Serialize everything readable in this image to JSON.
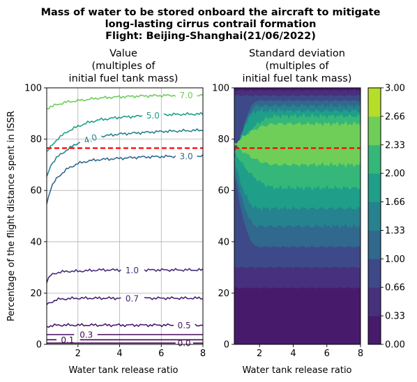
{
  "figure": {
    "title_lines": [
      "Mass of water to be stored onboard the aircraft to mitigate",
      "long-lasting cirrus contrail formation",
      "Flight: Beijing-Shanghai(21/06/2022)"
    ]
  },
  "left_panel": {
    "title_lines": [
      "Value",
      "(multiples of",
      "initial fuel tank mass)"
    ],
    "xlabel": "Water tank release ratio",
    "ylabel": "Percentage of the flight distance spent in ISSR",
    "x_ticks": [
      "2",
      "4",
      "6",
      "8"
    ],
    "y_ticks": [
      "0",
      "20",
      "40",
      "60",
      "80",
      "100"
    ]
  },
  "right_panel": {
    "title_lines": [
      "Standard deviation",
      "(multiples of",
      "initial fuel tank mass)"
    ],
    "xlabel": "Water tank release ratio",
    "x_ticks": [
      "2",
      "4",
      "6",
      "8"
    ],
    "y_ticks": [
      "0",
      "20",
      "40",
      "60",
      "80",
      "100"
    ]
  },
  "colorbar": {
    "tick_labels": [
      "0.00",
      "0.33",
      "0.66",
      "1.00",
      "1.33",
      "1.66",
      "2.00",
      "2.33",
      "2.66",
      "3.00"
    ],
    "colors": [
      "#481a6c",
      "#47307e",
      "#3e4989",
      "#31688e",
      "#26828e",
      "#1f9e89",
      "#35b779",
      "#6ece58",
      "#b5de2b",
      "#dae319"
    ]
  },
  "chart_data": [
    {
      "type": "line",
      "subtype": "contour",
      "title": "Value (multiples of initial fuel tank mass)",
      "xlabel": "Water tank release ratio",
      "ylabel": "Percentage of the flight distance spent in ISSR",
      "xlim": [
        0.5,
        8
      ],
      "ylim": [
        0,
        100
      ],
      "grid": true,
      "threshold_line": {
        "y": 76.5,
        "color": "#ff0000",
        "style": "dashed"
      },
      "series": [
        {
          "name": "0.0",
          "color": "#440154",
          "x": [
            0.5,
            2,
            4,
            6,
            8
          ],
          "y": [
            0.5,
            0.5,
            0.5,
            0.5,
            0.5
          ]
        },
        {
          "name": "0.1",
          "color": "#440154",
          "x": [
            0.5,
            2,
            4,
            6,
            8
          ],
          "y": [
            1.8,
            1.8,
            1.8,
            1.8,
            1.8
          ]
        },
        {
          "name": "0.3",
          "color": "#46085c",
          "x": [
            0.5,
            2,
            4,
            6,
            8
          ],
          "y": [
            3.8,
            3.8,
            3.8,
            3.8,
            3.8
          ]
        },
        {
          "name": "0.5",
          "color": "#481a6c",
          "x": [
            0.5,
            1,
            2,
            3,
            4,
            5,
            6,
            7,
            8
          ],
          "y": [
            7,
            7.5,
            7.5,
            7.5,
            7.5,
            7.5,
            7.5,
            7.5,
            7.5
          ]
        },
        {
          "name": "0.7",
          "color": "#482475",
          "x": [
            0.5,
            0.8,
            1,
            1.5,
            2,
            3,
            4,
            5,
            6,
            7,
            8
          ],
          "y": [
            15.5,
            16.8,
            17.5,
            17.8,
            18,
            18,
            18,
            18,
            18,
            18,
            18
          ]
        },
        {
          "name": "1.0",
          "color": "#472d7b",
          "x": [
            0.5,
            0.7,
            1,
            1.5,
            2,
            3,
            4,
            5,
            6,
            7,
            8
          ],
          "y": [
            24.5,
            27,
            28,
            28.5,
            28.5,
            29,
            29,
            29,
            29,
            29,
            29
          ]
        },
        {
          "name": "3.0",
          "color": "#31688e",
          "x": [
            0.5,
            0.7,
            1,
            1.5,
            2,
            2.5,
            3,
            4,
            5,
            6,
            7,
            8
          ],
          "y": [
            55,
            61,
            65,
            68.5,
            70.5,
            71.5,
            72,
            72.5,
            73,
            73.2,
            73.3,
            73.5
          ]
        },
        {
          "name": "4.0",
          "color": "#26828e",
          "x": [
            0.5,
            0.7,
            1,
            1.5,
            2,
            2.5,
            3,
            4,
            5,
            6,
            7,
            8
          ],
          "y": [
            65,
            70,
            73,
            76,
            78.5,
            80,
            81,
            82,
            82.5,
            83,
            83.2,
            83.5
          ]
        },
        {
          "name": "5.0",
          "color": "#1f9e89",
          "x": [
            0.5,
            1,
            1.5,
            2,
            2.5,
            3,
            4,
            5,
            6,
            7,
            8
          ],
          "y": [
            75,
            80,
            83,
            85,
            86.5,
            87.5,
            88.5,
            89,
            89.5,
            89.7,
            89.8
          ]
        },
        {
          "name": "7.0",
          "color": "#6ece58",
          "x": [
            0.5,
            1,
            1.5,
            2,
            3,
            4,
            5,
            6,
            7,
            8
          ],
          "y": [
            92,
            93.5,
            94.5,
            95,
            96,
            96.5,
            96.8,
            97,
            97.1,
            97.2
          ]
        }
      ]
    },
    {
      "type": "heatmap",
      "subtype": "filled-contour",
      "title": "Standard deviation (multiples of initial fuel tank mass)",
      "xlabel": "Water tank release ratio",
      "xlim": [
        0.5,
        8
      ],
      "ylim": [
        0,
        100
      ],
      "levels": [
        0.0,
        0.33,
        0.66,
        1.0,
        1.33,
        1.66,
        2.0,
        2.33,
        2.66,
        3.0
      ],
      "threshold_line": {
        "y": 76.5,
        "color": "#ff0000",
        "style": "dashed"
      },
      "bands": [
        {
          "level_min": 0.0,
          "level_max": 0.33,
          "y_range": [
            0,
            100
          ]
        },
        {
          "level_min": 0.33,
          "level_max": 0.66,
          "y_range": [
            22,
            99
          ]
        },
        {
          "level_min": 0.66,
          "level_max": 1.0,
          "y_range": [
            30,
            97
          ]
        },
        {
          "level_min": 1.0,
          "level_max": 1.33,
          "y_range": [
            38,
            95
          ]
        },
        {
          "level_min": 1.33,
          "level_max": 1.66,
          "y_range": [
            46,
            93
          ]
        },
        {
          "level_min": 1.66,
          "level_max": 2.0,
          "y_range": [
            53,
            91
          ]
        },
        {
          "level_min": 2.0,
          "level_max": 2.33,
          "y_range": [
            61,
            89
          ]
        },
        {
          "level_min": 2.33,
          "level_max": 2.66,
          "y_range": [
            70,
            86
          ]
        }
      ]
    }
  ]
}
